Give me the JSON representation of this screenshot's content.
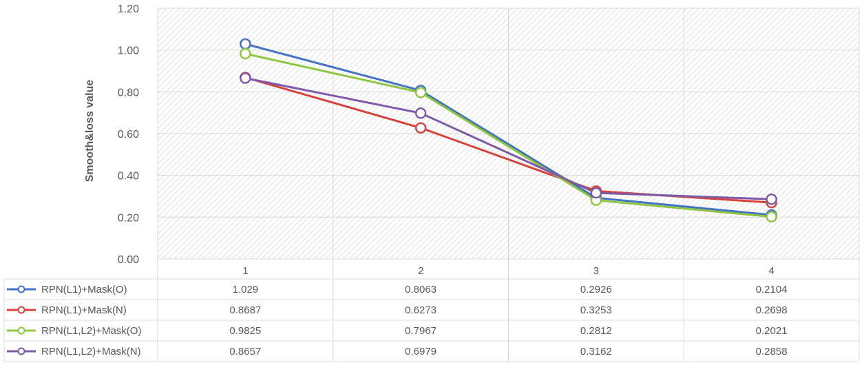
{
  "chart_data": {
    "type": "line",
    "title": "",
    "xlabel": "",
    "ylabel": "Smooth&loss value",
    "ylim": [
      0,
      1.2
    ],
    "yticks": [
      "0.00",
      "0.20",
      "0.40",
      "0.60",
      "0.80",
      "1.00",
      "1.20"
    ],
    "categories": [
      "1",
      "2",
      "3",
      "4"
    ],
    "grid": true,
    "legend": "data-table-left",
    "series": [
      {
        "name": "RPN(L1)+Mask(O)",
        "color": "#4472c4",
        "values": [
          1.029,
          0.8063,
          0.2926,
          0.2104
        ],
        "labels": [
          "1.029",
          "0.8063",
          "0.2926",
          "0.2104"
        ]
      },
      {
        "name": "RPN(L1)+Mask(N)",
        "color": "#d9423a",
        "values": [
          0.8687,
          0.6273,
          0.3253,
          0.2698
        ],
        "labels": [
          "0.8687",
          "0.6273",
          "0.3253",
          "0.2698"
        ]
      },
      {
        "name": "RPN(L1,L2)+Mask(O)",
        "color": "#8fc641",
        "values": [
          0.9825,
          0.7967,
          0.2812,
          0.2021
        ],
        "labels": [
          "0.9825",
          "0.7967",
          "0.2812",
          "0.2021"
        ]
      },
      {
        "name": "RPN(L1,L2)+Mask(N)",
        "color": "#7e5ba8",
        "values": [
          0.8657,
          0.6979,
          0.3162,
          0.2858
        ],
        "labels": [
          "0.8657",
          "0.6979",
          "0.3162",
          "0.2858"
        ]
      }
    ]
  }
}
